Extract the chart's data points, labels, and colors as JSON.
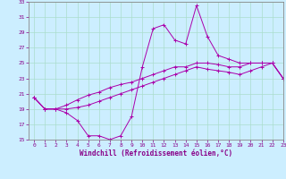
{
  "xlabel": "Windchill (Refroidissement éolien,°C)",
  "background_color": "#cceeff",
  "grid_color": "#aaddcc",
  "line_color": "#aa00aa",
  "spine_color": "#888888",
  "tick_color": "#880088",
  "x_hours": [
    0,
    1,
    2,
    3,
    4,
    5,
    6,
    7,
    8,
    9,
    10,
    11,
    12,
    13,
    14,
    15,
    16,
    17,
    18,
    19,
    20,
    21,
    22,
    23
  ],
  "line1": [
    20.5,
    19.0,
    19.0,
    18.5,
    17.5,
    15.5,
    15.5,
    15.0,
    15.5,
    18.0,
    24.5,
    29.5,
    30.0,
    28.0,
    27.5,
    32.5,
    28.5,
    26.0,
    25.5,
    25.0,
    25.0,
    25.0,
    25.0,
    23.0
  ],
  "line2": [
    20.5,
    19.0,
    19.0,
    19.0,
    19.2,
    19.5,
    20.0,
    20.5,
    21.0,
    21.5,
    22.0,
    22.5,
    23.0,
    23.5,
    24.0,
    24.5,
    24.2,
    24.0,
    23.8,
    23.5,
    24.0,
    24.5,
    25.0,
    23.0
  ],
  "line3": [
    20.5,
    19.0,
    19.0,
    19.5,
    20.2,
    20.8,
    21.2,
    21.8,
    22.2,
    22.5,
    23.0,
    23.5,
    24.0,
    24.5,
    24.5,
    25.0,
    25.0,
    24.8,
    24.5,
    24.5,
    25.0,
    25.0,
    25.0,
    23.0
  ],
  "ylim": [
    15,
    33
  ],
  "xlim": [
    -0.5,
    23
  ],
  "yticks": [
    15,
    17,
    19,
    21,
    23,
    25,
    27,
    29,
    31,
    33
  ],
  "xticks": [
    0,
    1,
    2,
    3,
    4,
    5,
    6,
    7,
    8,
    9,
    10,
    11,
    12,
    13,
    14,
    15,
    16,
    17,
    18,
    19,
    20,
    21,
    22,
    23
  ],
  "tick_fontsize": 4.5,
  "xlabel_fontsize": 5.5,
  "linewidth": 0.7,
  "markersize": 3.0,
  "markeredgewidth": 0.7
}
